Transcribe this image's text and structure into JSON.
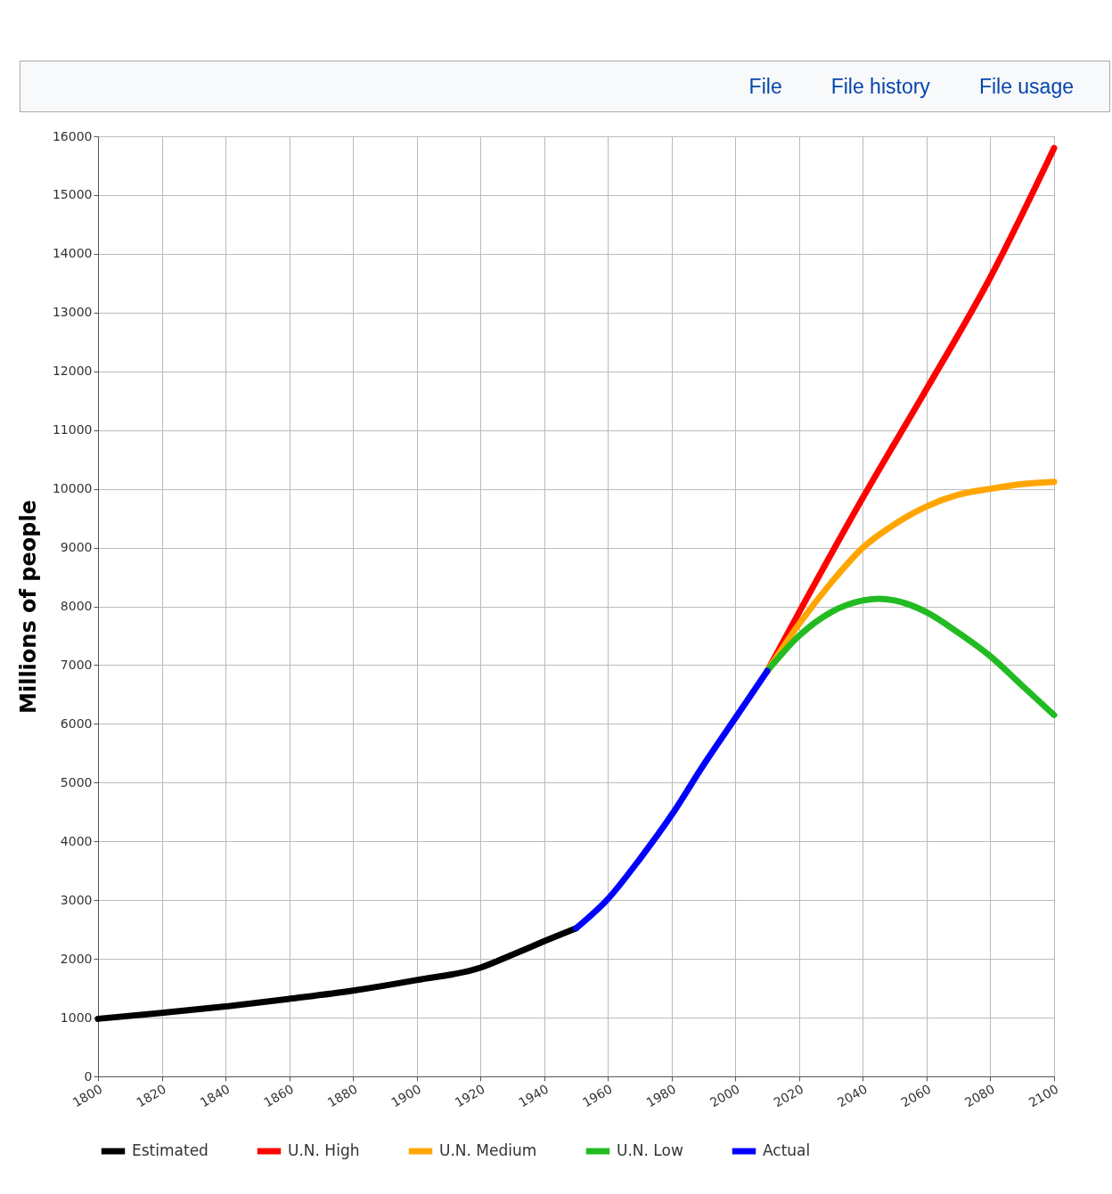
{
  "chart_data": {
    "type": "line",
    "ylabel": "Millions of people",
    "annotations": [
      "File",
      "File history",
      "File usage"
    ],
    "xlim": [
      1800,
      2100
    ],
    "xticks": [
      1800,
      1820,
      1840,
      1860,
      1880,
      1900,
      1920,
      1940,
      1960,
      1980,
      2000,
      2020,
      2040,
      2060,
      2080,
      2100
    ],
    "ylim": [
      0,
      16000
    ],
    "yticks": [
      0,
      1000,
      2000,
      3000,
      4000,
      5000,
      6000,
      7000,
      8000,
      9000,
      10000,
      11000,
      12000,
      13000,
      14000,
      15000,
      16000
    ],
    "grid": true,
    "legend": "bottom",
    "line_style": "solid",
    "series": [
      {
        "name": "Estimated",
        "color": "#000000",
        "x": [
          1800,
          1820,
          1840,
          1860,
          1880,
          1900,
          1920,
          1930,
          1940,
          1950
        ],
        "values": [
          980,
          1080,
          1190,
          1320,
          1460,
          1640,
          1850,
          2070,
          2300,
          2520
        ]
      },
      {
        "name": "U.N. High",
        "color": "#ff0000",
        "x": [
          2010,
          2020,
          2040,
          2060,
          2080,
          2100
        ],
        "values": [
          6900,
          7900,
          9850,
          11700,
          13600,
          15800
        ]
      },
      {
        "name": "U.N. Medium",
        "color": "#ffa500",
        "x": [
          2010,
          2020,
          2030,
          2040,
          2050,
          2060,
          2070,
          2080,
          2090,
          2100
        ],
        "values": [
          6900,
          7700,
          8400,
          9000,
          9400,
          9700,
          9900,
          10000,
          10080,
          10120
        ]
      },
      {
        "name": "U.N. Low",
        "color": "#22bb22",
        "x": [
          2010,
          2020,
          2030,
          2040,
          2045,
          2050,
          2060,
          2070,
          2080,
          2090,
          2100
        ],
        "values": [
          6900,
          7500,
          7900,
          8100,
          8130,
          8100,
          7900,
          7550,
          7150,
          6650,
          6150
        ]
      },
      {
        "name": "Actual",
        "color": "#0000ff",
        "x": [
          1950,
          1960,
          1970,
          1980,
          1990,
          2000,
          2010
        ],
        "values": [
          2520,
          3020,
          3700,
          4450,
          5300,
          6100,
          6900
        ]
      }
    ]
  }
}
